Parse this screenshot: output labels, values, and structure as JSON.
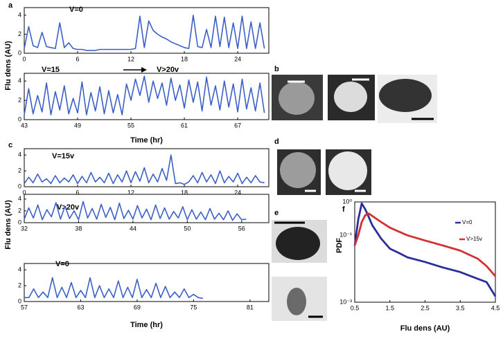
{
  "chart_data": [
    {
      "type": "line",
      "title": "V=0",
      "ylabel": "Flu dens (AU)",
      "color": "#3b5fc7",
      "x": [
        0,
        0.5,
        1,
        1.5,
        2,
        2.5,
        3,
        3.5,
        4,
        4.5,
        5,
        5.5,
        6,
        6.5,
        7,
        7.5,
        8,
        8.5,
        9,
        9.5,
        10,
        10.5,
        11,
        11.5,
        12,
        12.5,
        13,
        13.5,
        14,
        14.5,
        15,
        15.5,
        16,
        16.5,
        17,
        17.5,
        18,
        18.5,
        19,
        19.5,
        20,
        20.5,
        21,
        21.5,
        22,
        22.5,
        23,
        23.5,
        24,
        24.5,
        25,
        25.5,
        26,
        26.5,
        27
      ],
      "values": [
        0.5,
        2.8,
        0.8,
        0.6,
        2.2,
        0.7,
        0.6,
        0.5,
        3.2,
        0.6,
        1.1,
        0.5,
        0.4,
        0.4,
        0.3,
        0.3,
        0.3,
        0.4,
        0.4,
        0.4,
        0.4,
        0.4,
        0.4,
        0.4,
        0.4,
        0.5,
        3.9,
        0.6,
        3.4,
        2.4,
        2.0,
        1.7,
        1.5,
        1.2,
        1.0,
        0.8,
        0.6,
        0.5,
        4.0,
        0.7,
        0.6,
        2.5,
        0.6,
        3.9,
        0.7,
        3.8,
        0.6,
        3.2,
        0.5,
        3.9,
        0.5,
        3.3,
        0.5,
        3.2,
        0.5
      ],
      "xlim": [
        0,
        27.5
      ],
      "ylim": [
        0,
        4.8
      ],
      "xticks": [
        0,
        6,
        12,
        18,
        24
      ],
      "yticks": [
        0,
        2,
        4
      ]
    },
    {
      "type": "line",
      "title": "V=15",
      "annotation": "V>20v",
      "xlabel": "Time (hr)",
      "color": "#3b5fc7",
      "x": [
        43,
        43.5,
        44,
        44.5,
        45,
        45.5,
        46,
        46.5,
        47,
        47.5,
        48,
        48.5,
        49,
        49.5,
        50,
        50.5,
        51,
        51.5,
        52,
        52.5,
        53,
        53.5,
        54,
        54.5,
        55,
        55.5,
        56,
        56.5,
        57,
        57.5,
        58,
        58.5,
        59,
        59.5,
        60,
        60.5,
        61,
        61.5,
        62,
        62.5,
        63,
        63.5,
        64,
        64.5,
        65,
        65.5,
        66,
        66.5,
        67,
        67.5,
        68,
        68.5,
        69,
        69.5,
        70
      ],
      "values": [
        0.5,
        3.2,
        0.6,
        2.5,
        0.8,
        3.8,
        0.5,
        2.9,
        1.0,
        3.5,
        0.6,
        2.2,
        0.7,
        3.9,
        0.5,
        2.8,
        0.9,
        3.4,
        0.6,
        3.0,
        0.7,
        2.6,
        0.5,
        3.7,
        2.0,
        4.2,
        2.5,
        4.5,
        1.8,
        4.0,
        2.2,
        3.8,
        1.5,
        4.3,
        2.0,
        3.6,
        1.2,
        4.1,
        1.8,
        3.9,
        0.9,
        4.4,
        1.5,
        3.5,
        1.0,
        4.0,
        1.3,
        3.7,
        0.8,
        4.2,
        1.1,
        3.3,
        0.9,
        3.8,
        0.7
      ],
      "xlim": [
        43,
        70.5
      ],
      "ylim": [
        0,
        4.8
      ],
      "xticks": [
        43,
        49,
        55,
        61,
        67
      ],
      "yticks": [
        0,
        2,
        4
      ]
    },
    {
      "type": "line",
      "title": "V=15v",
      "ylabel": "Flu dens (AU)",
      "color": "#3b5fc7",
      "x": [
        0,
        0.5,
        1,
        1.5,
        2,
        2.5,
        3,
        3.5,
        4,
        4.5,
        5,
        5.5,
        6,
        6.5,
        7,
        7.5,
        8,
        8.5,
        9,
        9.5,
        10,
        10.5,
        11,
        11.5,
        12,
        12.5,
        13,
        13.5,
        14,
        14.5,
        15,
        15.5,
        16,
        16.5,
        17,
        17.5,
        18,
        18.5,
        19,
        19.5,
        20,
        20.5,
        21,
        21.5,
        22,
        22.5,
        23,
        23.5,
        24,
        24.5,
        25,
        25.5,
        26,
        26.5,
        27
      ],
      "values": [
        0.4,
        1.2,
        0.5,
        1.6,
        0.6,
        1.0,
        0.4,
        1.4,
        0.5,
        1.1,
        0.6,
        1.5,
        0.4,
        1.3,
        0.5,
        1.8,
        0.6,
        1.2,
        0.5,
        1.7,
        0.4,
        1.5,
        0.6,
        2.0,
        0.5,
        1.9,
        0.7,
        2.4,
        0.5,
        1.6,
        0.6,
        2.3,
        0.8,
        4.0,
        0.4,
        0.5,
        0.3,
        0.6,
        1.4,
        0.5,
        1.8,
        0.6,
        1.5,
        0.4,
        2.0,
        0.5,
        1.3,
        0.6,
        1.7,
        0.4,
        1.2,
        0.5,
        1.4,
        0.6,
        0.5
      ],
      "xlim": [
        0,
        27.5
      ],
      "ylim": [
        0,
        4.8
      ],
      "xticks": [
        0,
        6,
        12,
        18,
        24
      ],
      "yticks": [
        0,
        2,
        4
      ]
    },
    {
      "type": "line",
      "title": "V>20v",
      "color": "#3b5fc7",
      "x": [
        32,
        32.5,
        33,
        33.5,
        34,
        34.5,
        35,
        35.5,
        36,
        36.5,
        37,
        37.5,
        38,
        38.5,
        39,
        39.5,
        40,
        40.5,
        41,
        41.5,
        42,
        42.5,
        43,
        43.5,
        44,
        44.5,
        45,
        45.5,
        46,
        46.5,
        47,
        47.5,
        48,
        48.5,
        49,
        49.5,
        50,
        50.5,
        51,
        51.5,
        52,
        52.5,
        53,
        53.5,
        54,
        54.5,
        55,
        55.5,
        56,
        56.5
      ],
      "values": [
        0.6,
        2.5,
        0.8,
        3.0,
        0.5,
        2.2,
        1.0,
        3.4,
        0.6,
        2.8,
        0.7,
        2.0,
        0.5,
        3.6,
        0.8,
        2.4,
        0.6,
        3.1,
        0.9,
        2.6,
        0.5,
        3.3,
        0.7,
        2.1,
        0.6,
        2.9,
        0.8,
        2.3,
        0.5,
        3.0,
        0.7,
        2.5,
        0.6,
        1.9,
        0.8,
        2.7,
        0.5,
        2.2,
        0.6,
        1.8,
        0.5,
        2.4,
        0.6,
        1.6,
        0.5,
        2.0,
        0.4,
        1.5,
        0.5,
        0.6
      ],
      "xlim": [
        32,
        59
      ],
      "ylim": [
        0,
        4.8
      ],
      "xticks": [
        32,
        38,
        44,
        50,
        56
      ],
      "yticks": [
        0,
        2,
        4
      ]
    },
    {
      "type": "line",
      "title": "V=0",
      "xlabel": "Time (hr)",
      "color": "#3b5fc7",
      "x": [
        57,
        57.5,
        58,
        58.5,
        59,
        59.5,
        60,
        60.5,
        61,
        61.5,
        62,
        62.5,
        63,
        63.5,
        64,
        64.5,
        65,
        65.5,
        66,
        66.5,
        67,
        67.5,
        68,
        68.5,
        69,
        69.5,
        70,
        70.5,
        71,
        71.5,
        72,
        72.5,
        73,
        73.5,
        74,
        74.5,
        75,
        75.5,
        76
      ],
      "values": [
        0.5,
        0.5,
        1.6,
        0.5,
        1.2,
        0.5,
        3.0,
        0.5,
        1.8,
        0.5,
        2.4,
        0.5,
        1.4,
        0.5,
        3.0,
        0.5,
        2.0,
        0.5,
        1.6,
        0.5,
        2.6,
        0.5,
        1.8,
        0.5,
        2.8,
        0.5,
        1.5,
        0.5,
        2.3,
        0.5,
        1.9,
        0.5,
        1.2,
        0.5,
        1.6,
        0.5,
        0.9,
        0.5,
        0.4
      ],
      "xlim": [
        57,
        83
      ],
      "ylim": [
        0,
        4.8
      ],
      "xticks": [
        57,
        63,
        69,
        75,
        81
      ],
      "yticks": [
        0,
        2,
        4
      ]
    },
    {
      "type": "line",
      "xlabel": "Flu dens (AU)",
      "ylabel": "PDF",
      "log_y": true,
      "legend": "upper right",
      "x": [
        0.5,
        0.6,
        0.7,
        0.8,
        0.9,
        1.0,
        1.25,
        1.5,
        1.75,
        2.0,
        2.5,
        3.0,
        3.5,
        4.0,
        4.25,
        4.5
      ],
      "series": [
        {
          "name": "V=0",
          "color": "#2a2e9b",
          "values": [
            0.05,
            0.3,
            0.9,
            0.6,
            0.35,
            0.2,
            0.08,
            0.04,
            0.03,
            0.022,
            0.016,
            0.011,
            0.008,
            0.005,
            0.004,
            0.0015
          ]
        },
        {
          "name": "V>15v",
          "color": "#d4302f",
          "values": [
            0.05,
            0.1,
            0.25,
            0.4,
            0.45,
            0.38,
            0.25,
            0.17,
            0.13,
            0.1,
            0.07,
            0.05,
            0.035,
            0.02,
            0.012,
            0.006
          ]
        }
      ],
      "xlim": [
        0.5,
        4.5
      ],
      "ylim": [
        0.001,
        1
      ],
      "xticks": [
        0.5,
        1.5,
        2.5,
        3.5,
        4.5
      ],
      "yticks": [
        {
          "value": 1,
          "label": "10⁰"
        },
        {
          "value": 0.1,
          "label": "10⁻¹"
        },
        {
          "value": 0.001,
          "label": "10⁻³"
        }
      ]
    }
  ],
  "panel_labels": [
    "a",
    "b",
    "c",
    "d",
    "e",
    "f"
  ]
}
